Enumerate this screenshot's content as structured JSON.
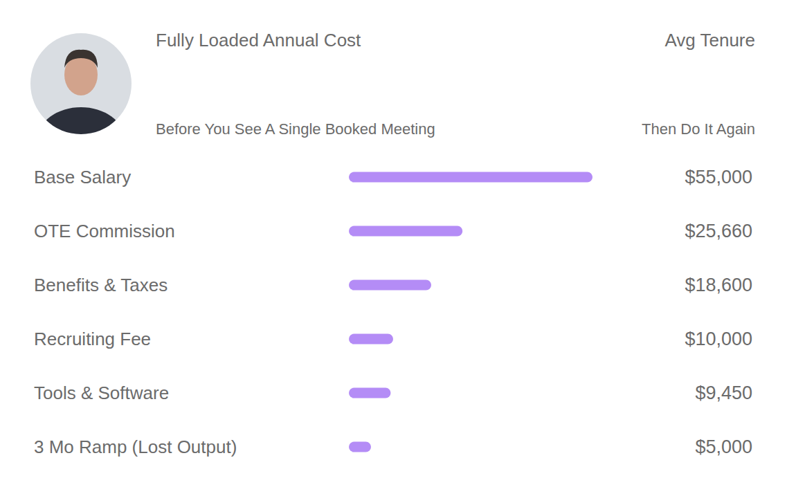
{
  "chart_data": {
    "type": "bar",
    "orientation": "horizontal",
    "title": "Fully Loaded Annual Cost",
    "subtitle": "Before You See A Single Booked Meeting",
    "annotations": [
      "Avg Tenure",
      "Then Do It Again"
    ],
    "categories": [
      "Base Salary",
      "OTE Commission",
      "Benefits & Taxes",
      "Recruiting Fee",
      "Tools & Software",
      "3 Mo Ramp (Lost Output)"
    ],
    "values": [
      55000,
      25660,
      18600,
      10000,
      9450,
      5000
    ],
    "value_labels": [
      "$55,000",
      "$25,660",
      "$18,600",
      "$10,000",
      "$9,450",
      "$5,000"
    ],
    "color": "#b48cf6",
    "xlim": [
      0,
      55000
    ],
    "data_labels": true,
    "tick_labels": false,
    "grid": false
  }
}
